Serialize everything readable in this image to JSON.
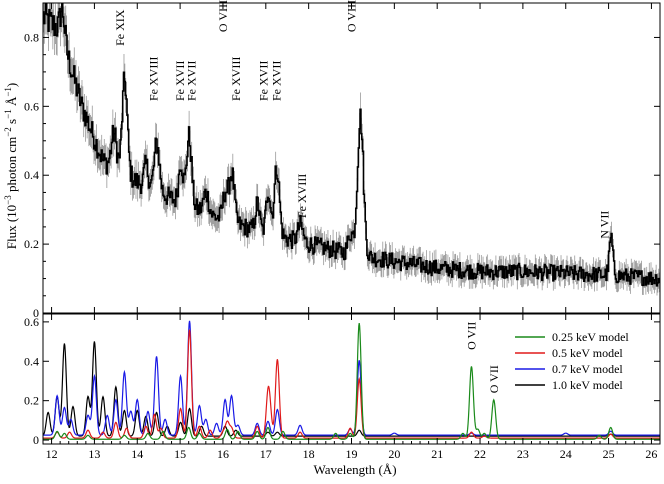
{
  "chart_data": [
    {
      "type": "line",
      "panel": "top",
      "ylabel": "Flux (10⁻³ photon cm⁻² s⁻¹ Å⁻¹)",
      "xlim": [
        11.8,
        26.2
      ],
      "ylim": [
        0,
        0.9
      ],
      "yticks": [
        0,
        0.2,
        0.4,
        0.6,
        0.8
      ],
      "ytick_labels": [
        "0",
        "0.2",
        "0.4",
        "0.6",
        "0.8"
      ],
      "continuum": [
        [
          11.8,
          0.86
        ],
        [
          12.2,
          0.82
        ],
        [
          12.7,
          0.6
        ],
        [
          13.2,
          0.44
        ],
        [
          14.0,
          0.38
        ],
        [
          15.0,
          0.32
        ],
        [
          16.0,
          0.27
        ],
        [
          17.0,
          0.23
        ],
        [
          18.0,
          0.2
        ],
        [
          19.0,
          0.17
        ],
        [
          20.0,
          0.15
        ],
        [
          21.0,
          0.13
        ],
        [
          22.0,
          0.12
        ],
        [
          23.0,
          0.12
        ],
        [
          24.0,
          0.115
        ],
        [
          25.0,
          0.11
        ],
        [
          26.2,
          0.1
        ]
      ],
      "lines": [
        {
          "x": 12.25,
          "amp": 0.08,
          "w": 0.05
        },
        {
          "x": 13.45,
          "amp": 0.1,
          "w": 0.06
        },
        {
          "x": 13.7,
          "amp": 0.27,
          "w": 0.06
        },
        {
          "x": 14.2,
          "amp": 0.06,
          "w": 0.05
        },
        {
          "x": 14.45,
          "amp": 0.14,
          "w": 0.06
        },
        {
          "x": 15.01,
          "amp": 0.12,
          "w": 0.05
        },
        {
          "x": 15.2,
          "amp": 0.2,
          "w": 0.06
        },
        {
          "x": 15.6,
          "amp": 0.06,
          "w": 0.06
        },
        {
          "x": 16.05,
          "amp": 0.08,
          "w": 0.06
        },
        {
          "x": 16.2,
          "amp": 0.14,
          "w": 0.06
        },
        {
          "x": 16.8,
          "amp": 0.08,
          "w": 0.05
        },
        {
          "x": 17.05,
          "amp": 0.13,
          "w": 0.05
        },
        {
          "x": 17.25,
          "amp": 0.2,
          "w": 0.06
        },
        {
          "x": 17.8,
          "amp": 0.05,
          "w": 0.06
        },
        {
          "x": 18.97,
          "amp": 0.06,
          "w": 0.06
        },
        {
          "x": 19.2,
          "amp": 0.4,
          "w": 0.07
        },
        {
          "x": 25.05,
          "amp": 0.11,
          "w": 0.04
        }
      ],
      "labels": [
        {
          "text": "Fe XIX",
          "x": 13.6,
          "y": 0.88
        },
        {
          "text": "Fe XVIII",
          "x": 14.38,
          "y": 0.72
        },
        {
          "text": "Fe XVII",
          "x": 15.0,
          "y": 0.72
        },
        {
          "text": "Fe XVII",
          "x": 15.26,
          "y": 0.72
        },
        {
          "text": "O VIII",
          "x": 16.0,
          "y": 0.92
        },
        {
          "text": "Fe XVIII",
          "x": 16.3,
          "y": 0.72
        },
        {
          "text": "Fe XVII",
          "x": 16.95,
          "y": 0.72
        },
        {
          "text": "Fe XVII",
          "x": 17.25,
          "y": 0.72
        },
        {
          "text": "Fe XVIII",
          "x": 17.85,
          "y": 0.38
        },
        {
          "text": "O VIII",
          "x": 19.0,
          "y": 0.92
        },
        {
          "text": "N VII",
          "x": 24.9,
          "y": 0.32
        }
      ]
    },
    {
      "type": "line",
      "panel": "bottom",
      "xlabel": "Wavelength (Å)",
      "xlim": [
        11.8,
        26.2
      ],
      "ylim": [
        -0.02,
        0.64
      ],
      "xticks": [
        12,
        13,
        14,
        15,
        16,
        17,
        18,
        19,
        20,
        21,
        22,
        23,
        24,
        25,
        26
      ],
      "xtick_labels": [
        "12",
        "13",
        "14",
        "15",
        "16",
        "17",
        "18",
        "19",
        "20",
        "21",
        "22",
        "23",
        "24",
        "25",
        "26"
      ],
      "yticks": [
        0,
        0.2,
        0.4,
        0.6
      ],
      "ytick_labels": [
        "0",
        "0.2",
        "0.4",
        "0.6"
      ],
      "legend_position": "top-right",
      "series": [
        {
          "name": "0.25 keV model",
          "color": "#1a8a1a",
          "base": 0.004,
          "lines": [
            [
              12.13,
              0.04
            ],
            [
              12.3,
              0.03
            ],
            [
              12.85,
              0.02
            ],
            [
              13.7,
              0.02
            ],
            [
              14.25,
              0.03
            ],
            [
              14.6,
              0.04
            ],
            [
              15.2,
              0.06
            ],
            [
              15.45,
              0.03
            ],
            [
              16.1,
              0.05
            ],
            [
              16.35,
              0.04
            ],
            [
              16.8,
              0.04
            ],
            [
              17.05,
              0.06
            ],
            [
              17.4,
              0.04
            ],
            [
              18.63,
              0.03
            ],
            [
              18.97,
              0.03
            ],
            [
              19.18,
              0.59
            ],
            [
              21.6,
              0.03
            ],
            [
              21.8,
              0.37
            ],
            [
              21.95,
              0.05
            ],
            [
              22.1,
              0.03
            ],
            [
              22.32,
              0.2
            ],
            [
              24.78,
              0.02
            ],
            [
              25.05,
              0.06
            ]
          ]
        },
        {
          "name": "0.5 keV model",
          "color": "#e01a1a",
          "base": 0.01,
          "lines": [
            [
              12.13,
              0.03
            ],
            [
              12.42,
              0.03
            ],
            [
              12.85,
              0.04
            ],
            [
              13.2,
              0.03
            ],
            [
              13.5,
              0.08
            ],
            [
              13.75,
              0.05
            ],
            [
              14.2,
              0.06
            ],
            [
              14.4,
              0.12
            ],
            [
              14.55,
              0.05
            ],
            [
              15.01,
              0.15
            ],
            [
              15.22,
              0.55
            ],
            [
              15.45,
              0.06
            ],
            [
              15.7,
              0.04
            ],
            [
              16.0,
              0.03
            ],
            [
              16.1,
              0.08
            ],
            [
              16.2,
              0.05
            ],
            [
              16.8,
              0.06
            ],
            [
              17.05,
              0.2
            ],
            [
              17.1,
              0.1
            ],
            [
              17.27,
              0.4
            ],
            [
              17.8,
              0.03
            ],
            [
              18.97,
              0.05
            ],
            [
              19.18,
              0.3
            ],
            [
              21.8,
              0.03
            ],
            [
              22.1,
              0.01
            ],
            [
              25.05,
              0.02
            ]
          ]
        },
        {
          "name": "0.7 keV model",
          "color": "#1a1ae6",
          "base": 0.025,
          "lines": [
            [
              12.13,
              0.2
            ],
            [
              12.3,
              0.14
            ],
            [
              12.45,
              0.08
            ],
            [
              12.85,
              0.1
            ],
            [
              13.0,
              0.3
            ],
            [
              13.3,
              0.1
            ],
            [
              13.5,
              0.18
            ],
            [
              13.7,
              0.32
            ],
            [
              13.85,
              0.12
            ],
            [
              14.0,
              0.18
            ],
            [
              14.25,
              0.12
            ],
            [
              14.45,
              0.4
            ],
            [
              14.65,
              0.08
            ],
            [
              15.01,
              0.3
            ],
            [
              15.22,
              0.58
            ],
            [
              15.45,
              0.15
            ],
            [
              15.6,
              0.08
            ],
            [
              15.85,
              0.06
            ],
            [
              16.05,
              0.18
            ],
            [
              16.2,
              0.2
            ],
            [
              16.35,
              0.05
            ],
            [
              16.8,
              0.06
            ],
            [
              17.05,
              0.07
            ],
            [
              17.27,
              0.13
            ],
            [
              17.8,
              0.05
            ],
            [
              18.97,
              0.03
            ],
            [
              19.18,
              0.38
            ],
            [
              20.0,
              0.01
            ],
            [
              21.8,
              0.01
            ],
            [
              24.0,
              0.01
            ],
            [
              25.05,
              0.02
            ]
          ]
        },
        {
          "name": "1.0 keV model",
          "color": "#000000",
          "base": 0.02,
          "lines": [
            [
              11.92,
              0.12
            ],
            [
              12.13,
              0.2
            ],
            [
              12.3,
              0.47
            ],
            [
              12.5,
              0.15
            ],
            [
              12.85,
              0.2
            ],
            [
              13.0,
              0.48
            ],
            [
              13.2,
              0.2
            ],
            [
              13.5,
              0.25
            ],
            [
              13.7,
              0.13
            ],
            [
              14.0,
              0.13
            ],
            [
              14.2,
              0.1
            ],
            [
              14.45,
              0.12
            ],
            [
              14.7,
              0.05
            ],
            [
              15.01,
              0.07
            ],
            [
              15.22,
              0.14
            ],
            [
              15.5,
              0.05
            ],
            [
              16.05,
              0.05
            ],
            [
              16.3,
              0.03
            ],
            [
              17.05,
              0.02
            ],
            [
              17.27,
              0.02
            ],
            [
              19.18,
              0.03
            ],
            [
              25.05,
              0.01
            ]
          ]
        }
      ],
      "labels": [
        {
          "text": "O VII",
          "x": 21.8,
          "y": 0.62
        },
        {
          "text": "O VII",
          "x": 22.32,
          "y": 0.4
        }
      ]
    }
  ]
}
